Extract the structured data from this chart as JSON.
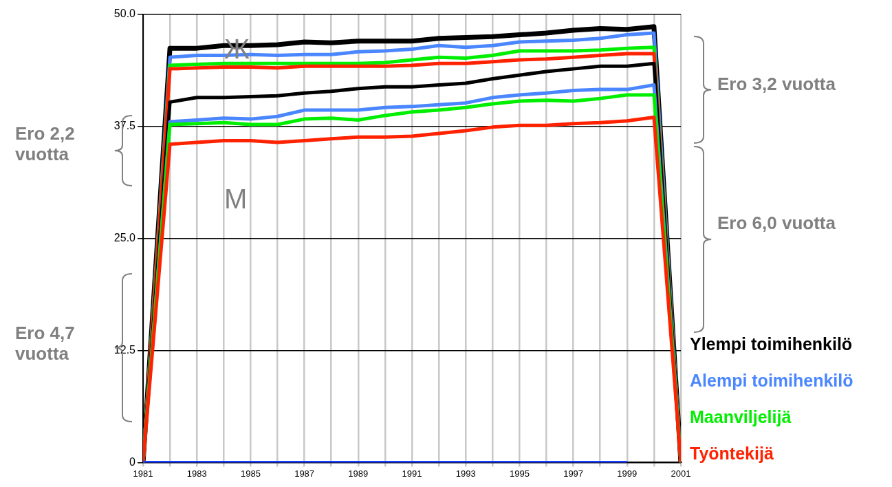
{
  "chart_data": {
    "type": "line",
    "x": [
      1981,
      1982,
      1983,
      1984,
      1985,
      1986,
      1987,
      1988,
      1989,
      1990,
      1991,
      1992,
      1993,
      1994,
      1995,
      1996,
      1997,
      1998,
      1999,
      2000,
      2001
    ],
    "series": [
      {
        "name": "Ylempi toimihenkilö",
        "color": "#000000",
        "values": [
          0,
          46.2,
          46.2,
          46.5,
          46.5,
          46.6,
          46.9,
          46.8,
          47.0,
          47.0,
          47.0,
          47.3,
          47.4,
          47.5,
          47.7,
          47.9,
          48.2,
          48.4,
          48.3,
          48.6,
          0
        ]
      },
      {
        "name": "Alempi toimihenkilö",
        "color": "#4a86ff",
        "values": [
          0,
          45.2,
          45.4,
          45.4,
          45.5,
          45.4,
          45.5,
          45.5,
          45.8,
          45.9,
          46.1,
          46.5,
          46.3,
          46.5,
          46.9,
          47.0,
          47.1,
          47.3,
          47.7,
          47.9,
          0
        ]
      },
      {
        "name": "Maanviljelijä",
        "color": "#00ee00",
        "values": [
          0,
          44.3,
          44.4,
          44.5,
          44.5,
          44.5,
          44.5,
          44.5,
          44.5,
          44.6,
          44.9,
          45.2,
          45.1,
          45.4,
          45.9,
          45.9,
          45.9,
          46.0,
          46.2,
          46.3,
          0
        ]
      },
      {
        "name": "Työntekijä",
        "color": "#ff2200",
        "values": [
          0,
          43.9,
          44.0,
          44.1,
          44.1,
          44.0,
          44.2,
          44.2,
          44.2,
          44.2,
          44.3,
          44.5,
          44.5,
          44.7,
          44.9,
          45.0,
          45.2,
          45.4,
          45.6,
          45.6,
          0
        ]
      },
      {
        "color": "#000000",
        "values": [
          0,
          40.2,
          40.7,
          40.7,
          40.8,
          40.9,
          41.2,
          41.4,
          41.7,
          41.9,
          41.9,
          42.1,
          42.3,
          42.8,
          43.2,
          43.6,
          43.9,
          44.2,
          44.2,
          44.5,
          0
        ]
      },
      {
        "color": "#4a86ff",
        "values": [
          0,
          38.0,
          38.2,
          38.4,
          38.3,
          38.6,
          39.3,
          39.3,
          39.3,
          39.6,
          39.7,
          39.9,
          40.1,
          40.7,
          41.0,
          41.2,
          41.5,
          41.6,
          41.6,
          42.1,
          0
        ]
      },
      {
        "color": "#00ee00",
        "values": [
          0,
          37.7,
          37.8,
          37.9,
          37.7,
          37.7,
          38.3,
          38.4,
          38.2,
          38.7,
          39.1,
          39.3,
          39.6,
          40.0,
          40.3,
          40.4,
          40.3,
          40.6,
          41.0,
          41.0,
          0
        ]
      },
      {
        "color": "#ff2200",
        "values": [
          0,
          35.5,
          35.7,
          35.9,
          35.9,
          35.7,
          35.9,
          36.1,
          36.3,
          36.3,
          36.4,
          36.7,
          37.0,
          37.4,
          37.6,
          37.6,
          37.8,
          37.9,
          38.1,
          38.5,
          0
        ]
      },
      {
        "color": "#1a3cff",
        "values": [
          0,
          0,
          0,
          0,
          0,
          0,
          0,
          0,
          0,
          0,
          0,
          0,
          0,
          0,
          0,
          0,
          0,
          0,
          0,
          null,
          null
        ]
      }
    ],
    "xlim": [
      1981,
      2001
    ],
    "xticks": [
      1981,
      {
        "value": 1982,
        "label": null
      },
      1983,
      {
        "value": 1984,
        "label": null
      },
      1985,
      {
        "value": 1986,
        "label": null
      },
      1987,
      {
        "value": 1988,
        "label": null
      },
      1989,
      {
        "value": 1990,
        "label": null
      },
      1991,
      {
        "value": 1992,
        "label": null
      },
      1993,
      {
        "value": 1994,
        "label": null
      },
      1995,
      {
        "value": 1996,
        "label": null
      },
      1997,
      {
        "value": 1998,
        "label": null
      },
      1999,
      {
        "value": 2000,
        "label": null
      },
      2001
    ],
    "ylim": [
      0,
      50
    ],
    "yticks": [
      0,
      12.5,
      {
        "value": 25,
        "label": "25.0"
      },
      37.5,
      {
        "value": 50,
        "label": "50.0"
      }
    ],
    "grid": true,
    "legend": "bottom right",
    "marker": "none",
    "annotations": [
      "Ж",
      "M",
      "Ero 3,2 vuotta",
      "Ero 6,0 vuotta",
      "Ero 2,2 vuotta",
      "Ero 4,7 vuotta"
    ]
  }
}
